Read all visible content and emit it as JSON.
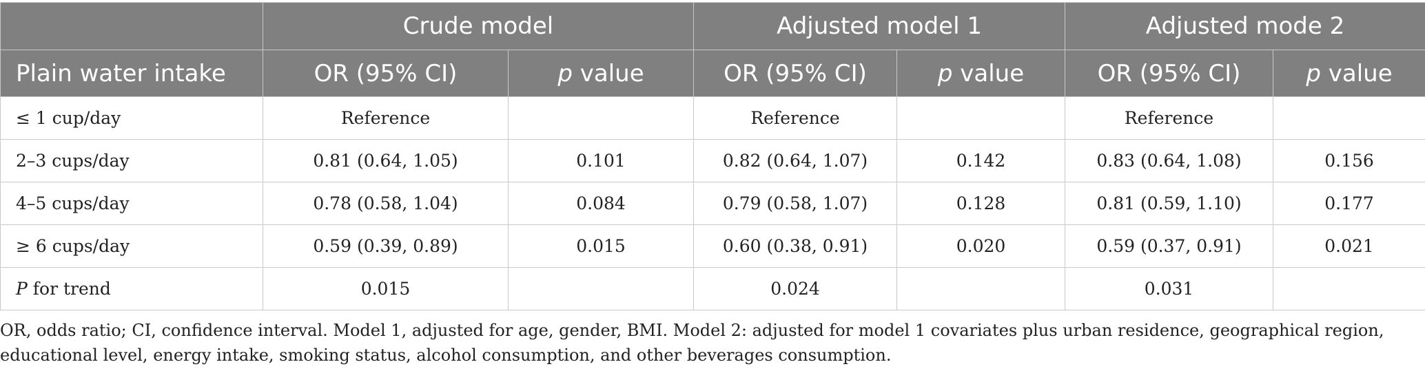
{
  "table": {
    "group_headers": [
      "Crude model",
      "Adjusted model 1",
      "Adjusted mode 2"
    ],
    "row_header": "Plain water intake",
    "or_header": "OR (95% CI)",
    "p_header_italic": "p",
    "p_header_rest": " value",
    "rows": [
      {
        "label_prefix": "",
        "label": "≤ 1 cup/day",
        "c1": "Reference",
        "c2": "",
        "c3": "Reference",
        "c4": "",
        "c5": "Reference",
        "c6": ""
      },
      {
        "label_prefix": "",
        "label": "2–3 cups/day",
        "c1": "0.81 (0.64, 1.05)",
        "c2": "0.101",
        "c3": "0.82 (0.64, 1.07)",
        "c4": "0.142",
        "c5": "0.83 (0.64, 1.08)",
        "c6": "0.156"
      },
      {
        "label_prefix": "",
        "label": "4–5 cups/day",
        "c1": "0.78 (0.58, 1.04)",
        "c2": "0.084",
        "c3": "0.79 (0.58, 1.07)",
        "c4": "0.128",
        "c5": "0.81 (0.59, 1.10)",
        "c6": "0.177"
      },
      {
        "label_prefix": "",
        "label": "≥ 6 cups/day",
        "c1": "0.59 (0.39, 0.89)",
        "c2": "0.015",
        "c3": "0.60 (0.38, 0.91)",
        "c4": "0.020",
        "c5": "0.59 (0.37, 0.91)",
        "c6": "0.021"
      },
      {
        "label_prefix": "P",
        "label": " for trend",
        "c1": "0.015",
        "c2": "",
        "c3": "0.024",
        "c4": "",
        "c5": "0.031",
        "c6": ""
      }
    ]
  },
  "footnote": "OR, odds ratio; CI, confidence interval. Model 1, adjusted for age, gender, BMI. Model 2: adjusted for model 1 covariates plus urban residence, geographical region, educational level, energy intake, smoking status, alcohol consumption, and other beverages consumption."
}
